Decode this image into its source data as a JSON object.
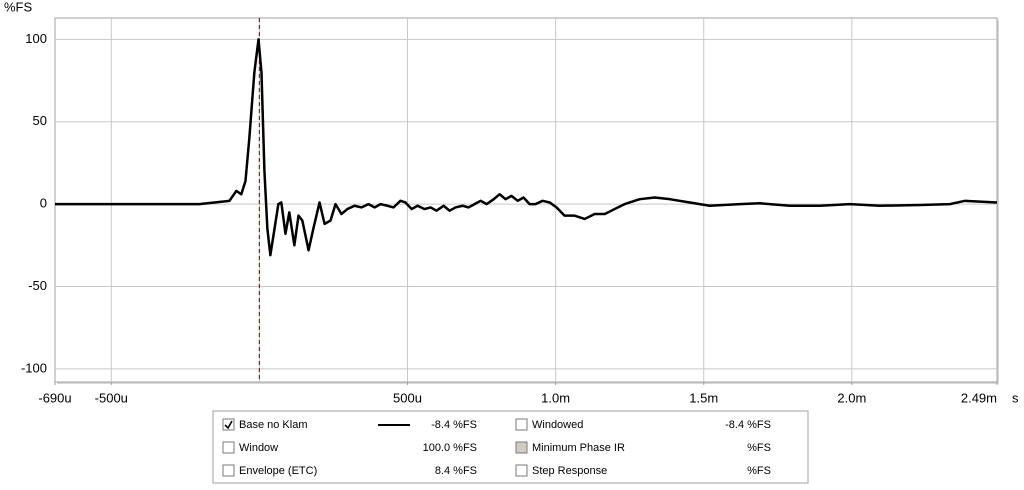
{
  "chart_data": {
    "type": "line",
    "ylabel": "%FS",
    "xlabel": "s",
    "xlim": [
      -0.00069,
      0.00249
    ],
    "ylim": [
      -108,
      113
    ],
    "xticks": [
      {
        "value": -0.00069,
        "label": "-690u"
      },
      {
        "value": -0.0005,
        "label": "-500u"
      },
      {
        "value": 0.0005,
        "label": "500u"
      },
      {
        "value": 0.001,
        "label": "1.0m"
      },
      {
        "value": 0.0015,
        "label": "1.5m"
      },
      {
        "value": 0.002,
        "label": "2.0m"
      },
      {
        "value": 0.00249,
        "label": "2.49m"
      }
    ],
    "grid_x": [
      -0.0005,
      0,
      0.0005,
      0.001,
      0.0015,
      0.002
    ],
    "yticks": [
      100,
      50,
      0,
      -50,
      -100
    ],
    "grid": true,
    "marker_x": 0,
    "marker_color": "#e00000",
    "x": [
      -0.00069,
      -0.0004,
      -0.000203,
      -0.000101,
      -7.8e-05,
      -6.1e-05,
      -4.7e-05,
      -3.4e-05,
      -1.7e-05,
      -3e-06,
      7e-06,
      1.7e-05,
      2.7e-05,
      3.7e-05,
      5.1e-05,
      6.4e-05,
      7.4e-05,
      8.8e-05,
      0.000101,
      0.000118,
      0.000132,
      0.000145,
      0.000166,
      0.000182,
      0.000203,
      0.00022,
      0.00024,
      0.000257,
      0.000277,
      0.000297,
      0.000321,
      0.000345,
      0.000368,
      0.000389,
      0.000409,
      0.000432,
      0.000453,
      0.000476,
      0.000493,
      0.000514,
      0.000534,
      0.000557,
      0.000578,
      0.000598,
      0.000622,
      0.000642,
      0.000662,
      0.000686,
      0.000706,
      0.000726,
      0.000747,
      0.000767,
      0.000791,
      0.000811,
      0.000831,
      0.000851,
      0.000872,
      0.000892,
      0.000912,
      0.000932,
      0.000956,
      0.00098,
      0.001003,
      0.00103,
      0.001064,
      0.001098,
      0.001132,
      0.001166,
      0.001199,
      0.001233,
      0.001284,
      0.001334,
      0.001385,
      0.001453,
      0.00152,
      0.001622,
      0.001689,
      0.001791,
      0.001892,
      0.001993,
      0.002095,
      0.00223,
      0.002331,
      0.002382,
      0.00249
    ],
    "series": [
      {
        "name": "Base no Klam",
        "color": "#000000",
        "values": [
          0,
          0,
          0,
          2,
          8,
          6,
          14,
          40,
          80,
          100,
          80,
          20,
          -15,
          -31,
          -15,
          0,
          1,
          -18,
          -5,
          -25,
          -7,
          -10,
          -28,
          -15,
          1,
          -12,
          -10,
          0,
          -6,
          -3,
          -1,
          -2,
          0,
          -2,
          0,
          -1,
          -2,
          2,
          1,
          -3,
          -1,
          -3,
          -2,
          -4,
          -1,
          -4,
          -2,
          -1,
          -2,
          0,
          2,
          0,
          3,
          6,
          3,
          5,
          2,
          4,
          0,
          0,
          2,
          1,
          -2,
          -7,
          -7,
          -9,
          -6,
          -6,
          -3,
          0,
          3,
          4,
          3,
          1,
          -1,
          0,
          0.5,
          -1,
          -1,
          0,
          -1,
          -0.5,
          0,
          2,
          1
        ]
      }
    ]
  },
  "legend_panel": {
    "items": [
      {
        "readout": "-8.4 %FS",
        "checked": true,
        "enabled": true,
        "color": "#000000"
      },
      {
        "name": "Windowed",
        "readout": "-8.4 %FS",
        "checked": false,
        "enabled": true,
        "color": "#000000"
      },
      {
        "name": "Window",
        "readout": "100.0 %FS",
        "checked": false,
        "enabled": true,
        "color": "#1a1acc"
      },
      {
        "name": "Minimum Phase IR",
        "readout": "%FS",
        "checked": false,
        "enabled": false,
        "color": "#8c8c8c"
      },
      {
        "name": "Envelope (ETC)",
        "readout": "8.4 %FS",
        "checked": false,
        "enabled": true,
        "color": "#000000"
      },
      {
        "name": "Step Response",
        "readout": "%FS",
        "checked": false,
        "enabled": true,
        "color": "#000000"
      }
    ]
  }
}
